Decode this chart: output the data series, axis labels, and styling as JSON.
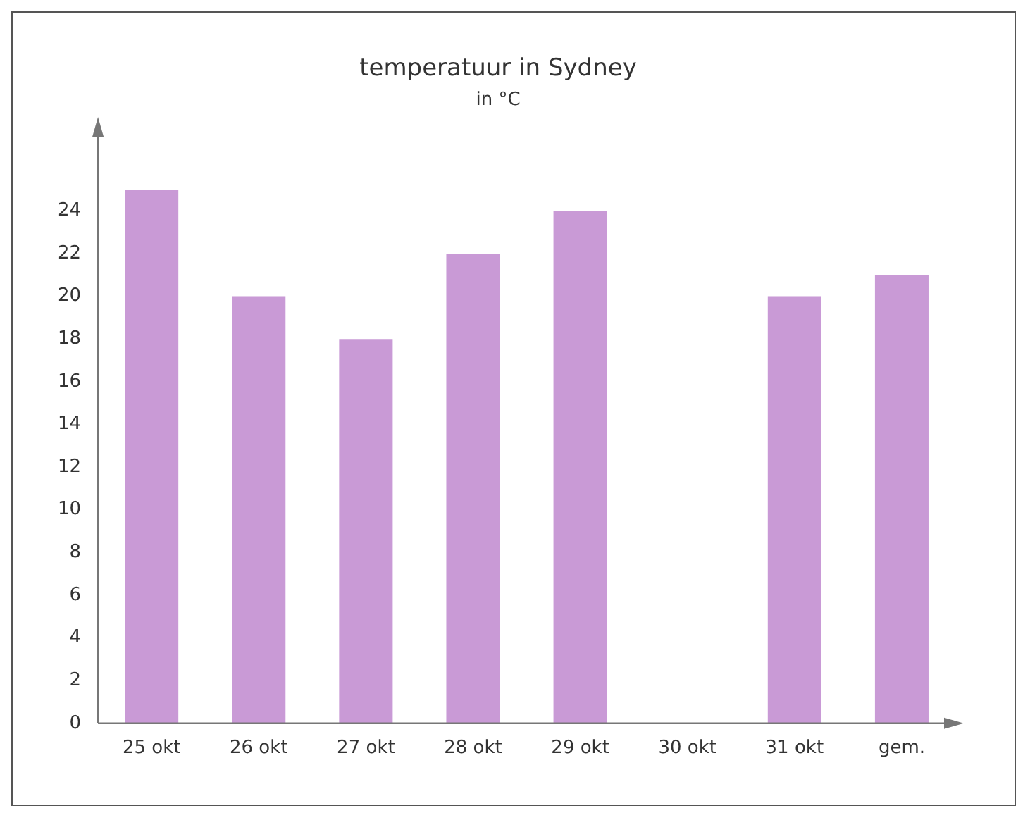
{
  "chart_data": {
    "type": "bar",
    "title": "temperatuur in Sydney",
    "subtitle": "in °C",
    "categories": [
      "25 okt",
      "26 okt",
      "27 okt",
      "28 okt",
      "29 okt",
      "30 okt",
      "31 okt",
      "gem."
    ],
    "values": [
      25,
      20,
      18,
      22,
      24,
      null,
      20,
      21
    ],
    "color": "#c99ad6",
    "ylim": [
      0,
      28
    ],
    "yticks": [
      0,
      2,
      4,
      6,
      8,
      10,
      12,
      14,
      16,
      18,
      20,
      22,
      24
    ],
    "grid": false,
    "legend": false
  }
}
